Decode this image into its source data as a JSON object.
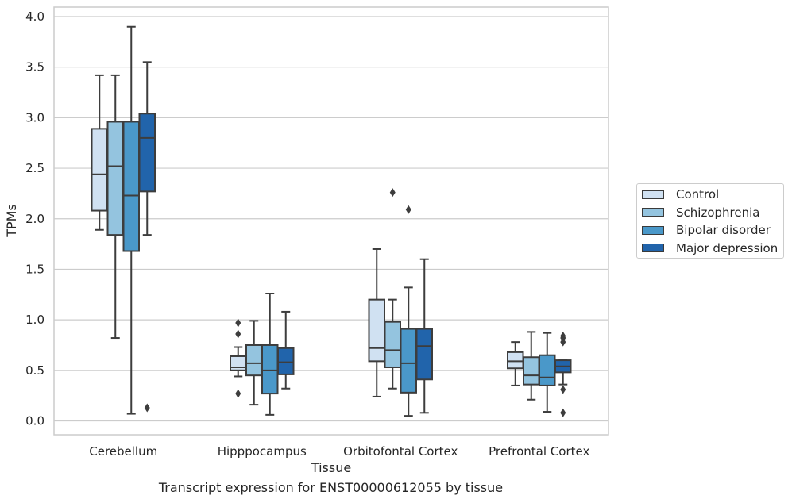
{
  "chart_data": {
    "type": "boxplot",
    "title": "Transcript expression for ENST00000612055 by tissue",
    "xlabel": "Tissue",
    "ylabel": "TPMs",
    "ylim": [
      -0.13,
      4.09
    ],
    "yticks": [
      "0.0",
      "0.5",
      "1.0",
      "1.5",
      "2.0",
      "2.5",
      "3.0",
      "3.5",
      "4.0"
    ],
    "grid": "horizontal",
    "legend_position": "right",
    "categories": [
      "Cerebellum",
      "Hipppocampus",
      "Orbitofontal Cortex",
      "Prefrontal Cortex"
    ],
    "series": [
      {
        "name": "Control",
        "color": "#d0e1f2",
        "boxes": [
          {
            "whislo": 1.89,
            "q1": 2.08,
            "med": 2.44,
            "q3": 2.89,
            "whishi": 3.42,
            "fliers": []
          },
          {
            "whislo": 0.44,
            "q1": 0.5,
            "med": 0.53,
            "q3": 0.64,
            "whishi": 0.73,
            "fliers": [
              0.27,
              0.86,
              0.97
            ]
          },
          {
            "whislo": 0.24,
            "q1": 0.59,
            "med": 0.72,
            "q3": 1.2,
            "whishi": 1.7,
            "fliers": []
          },
          {
            "whislo": 0.35,
            "q1": 0.52,
            "med": 0.59,
            "q3": 0.68,
            "whishi": 0.78,
            "fliers": []
          }
        ]
      },
      {
        "name": "Schizophrenia",
        "color": "#94c4df",
        "boxes": [
          {
            "whislo": 0.82,
            "q1": 1.84,
            "med": 2.52,
            "q3": 2.96,
            "whishi": 3.42,
            "fliers": []
          },
          {
            "whislo": 0.16,
            "q1": 0.45,
            "med": 0.57,
            "q3": 0.75,
            "whishi": 0.99,
            "fliers": []
          },
          {
            "whislo": 0.32,
            "q1": 0.53,
            "med": 0.7,
            "q3": 0.98,
            "whishi": 1.2,
            "fliers": [
              2.26
            ]
          },
          {
            "whislo": 0.21,
            "q1": 0.36,
            "med": 0.45,
            "q3": 0.63,
            "whishi": 0.88,
            "fliers": []
          }
        ]
      },
      {
        "name": "Bipolar disorder",
        "color": "#4a98c9",
        "boxes": [
          {
            "whislo": 0.07,
            "q1": 1.68,
            "med": 2.23,
            "q3": 2.96,
            "whishi": 3.9,
            "fliers": []
          },
          {
            "whislo": 0.06,
            "q1": 0.27,
            "med": 0.5,
            "q3": 0.75,
            "whishi": 1.26,
            "fliers": []
          },
          {
            "whislo": 0.05,
            "q1": 0.28,
            "med": 0.57,
            "q3": 0.91,
            "whishi": 1.32,
            "fliers": [
              2.09
            ]
          },
          {
            "whislo": 0.09,
            "q1": 0.35,
            "med": 0.43,
            "q3": 0.65,
            "whishi": 0.87,
            "fliers": []
          }
        ]
      },
      {
        "name": "Major depression",
        "color": "#2164ab",
        "boxes": [
          {
            "whislo": 1.84,
            "q1": 2.27,
            "med": 2.8,
            "q3": 3.04,
            "whishi": 3.55,
            "fliers": [
              0.13
            ]
          },
          {
            "whislo": 0.32,
            "q1": 0.46,
            "med": 0.58,
            "q3": 0.72,
            "whishi": 1.08,
            "fliers": []
          },
          {
            "whislo": 0.08,
            "q1": 0.41,
            "med": 0.74,
            "q3": 0.91,
            "whishi": 1.6,
            "fliers": []
          },
          {
            "whislo": 0.36,
            "q1": 0.48,
            "med": 0.54,
            "q3": 0.6,
            "whishi": 0.6,
            "fliers": [
              0.08,
              0.31,
              0.78,
              0.82,
              0.84
            ]
          }
        ]
      }
    ]
  }
}
